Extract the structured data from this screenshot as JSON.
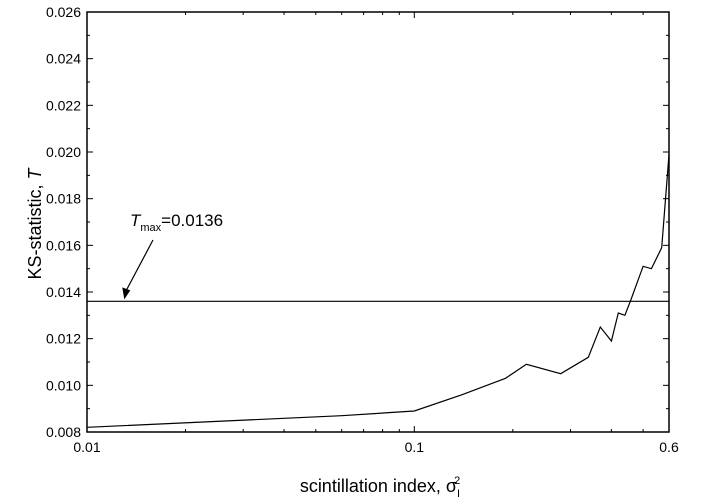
{
  "chart_data": {
    "type": "line",
    "title": "",
    "xlabel": {
      "text": "scintillation index, ",
      "symbol": "σ",
      "sub": "I",
      "sup": "2"
    },
    "ylabel": {
      "text": "KS-statistic, ",
      "symbol": "T"
    },
    "xscale": "log",
    "xlim": [
      0.01,
      0.6
    ],
    "ylim": [
      0.008,
      0.026
    ],
    "xticks": [
      {
        "value": 0.01,
        "label": "0.01"
      },
      {
        "value": 0.1,
        "label": "0.1"
      },
      {
        "value": 0.6,
        "label": "0.6"
      }
    ],
    "yticks": [
      {
        "value": 0.008,
        "label": "0.008"
      },
      {
        "value": 0.01,
        "label": "0.010"
      },
      {
        "value": 0.012,
        "label": "0.012"
      },
      {
        "value": 0.014,
        "label": "0.014"
      },
      {
        "value": 0.016,
        "label": "0.016"
      },
      {
        "value": 0.018,
        "label": "0.018"
      },
      {
        "value": 0.02,
        "label": "0.020"
      },
      {
        "value": 0.022,
        "label": "0.022"
      },
      {
        "value": 0.024,
        "label": "0.024"
      },
      {
        "value": 0.026,
        "label": "0.026"
      }
    ],
    "grid": false,
    "legend": "none",
    "series": [
      {
        "color": "#000000",
        "x": [
          0.01,
          0.06,
          0.1,
          0.14,
          0.19,
          0.22,
          0.28,
          0.34,
          0.37,
          0.4,
          0.42,
          0.44,
          0.46,
          0.5,
          0.53,
          0.57,
          0.6
        ],
        "y": [
          0.0082,
          0.0087,
          0.0089,
          0.0096,
          0.0103,
          0.0109,
          0.0105,
          0.0112,
          0.0125,
          0.0119,
          0.0131,
          0.013,
          0.0137,
          0.0151,
          0.015,
          0.0159,
          0.0199
        ]
      }
    ],
    "reference_line": {
      "y": 0.0136,
      "color": "#000000"
    },
    "annotation": {
      "symbol": "T",
      "sub": "max",
      "text": "=0.0136",
      "arrow_to": {
        "x": 0.013,
        "y": 0.0136
      }
    }
  }
}
